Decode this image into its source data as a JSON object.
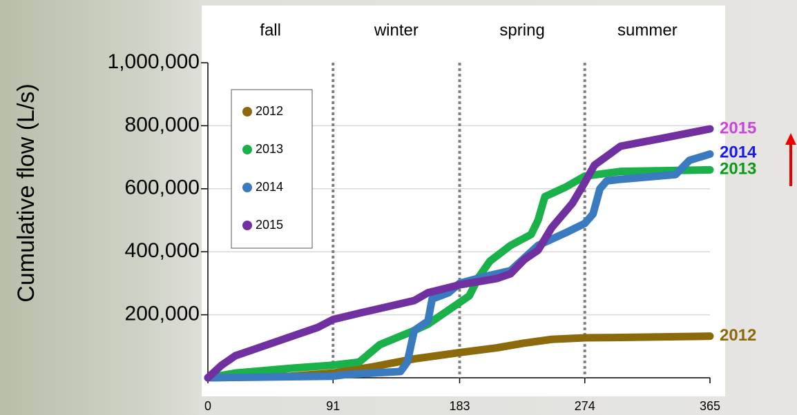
{
  "chart_data": {
    "type": "line",
    "y_label": "Cumulative flow (L/s)",
    "xlim": [
      0,
      365
    ],
    "xticks": [
      0,
      91,
      183,
      274,
      365
    ],
    "ylim": [
      0,
      1000000
    ],
    "yticks": [
      {
        "value": 200000,
        "label": "200,000"
      },
      {
        "value": 400000,
        "label": "400,000"
      },
      {
        "value": 600000,
        "label": "600,000"
      },
      {
        "value": 800000,
        "label": "800,000"
      },
      {
        "value": 1000000,
        "label": "1,000,000"
      }
    ],
    "grid": true,
    "seasons": [
      "fall",
      "winter",
      "spring",
      "summer"
    ],
    "season_dividers": [
      91,
      183,
      274
    ],
    "legend": "upper left",
    "series": [
      {
        "name": "2012",
        "color": "#8a6a0a",
        "x": [
          0,
          60,
          91,
          120,
          150,
          183,
          210,
          230,
          250,
          274,
          300,
          365
        ],
        "values": [
          0,
          5000,
          15000,
          35000,
          60000,
          80000,
          95000,
          110000,
          122000,
          127000,
          128000,
          132000
        ]
      },
      {
        "name": "2013",
        "color": "#1ab04a",
        "x": [
          0,
          20,
          60,
          91,
          110,
          125,
          150,
          160,
          175,
          190,
          197,
          205,
          220,
          235,
          240,
          245,
          260,
          274,
          300,
          365
        ],
        "values": [
          0,
          15000,
          30000,
          40000,
          50000,
          105000,
          150000,
          170000,
          215000,
          260000,
          320000,
          370000,
          420000,
          455000,
          500000,
          575000,
          605000,
          640000,
          655000,
          660000
        ]
      },
      {
        "name": "2014",
        "color": "#3a7bc0",
        "x": [
          0,
          91,
          100,
          140,
          145,
          150,
          160,
          163,
          175,
          183,
          200,
          220,
          240,
          260,
          274,
          280,
          285,
          290,
          300,
          340,
          350,
          365
        ],
        "values": [
          0,
          5000,
          10000,
          20000,
          50000,
          150000,
          180000,
          250000,
          270000,
          300000,
          320000,
          340000,
          420000,
          460000,
          490000,
          520000,
          600000,
          625000,
          630000,
          645000,
          690000,
          710000
        ]
      },
      {
        "name": "2015",
        "color": "#7030a0",
        "x": [
          0,
          10,
          20,
          40,
          60,
          80,
          91,
          110,
          130,
          150,
          160,
          183,
          210,
          220,
          230,
          240,
          250,
          265,
          274,
          281,
          300,
          330,
          365
        ],
        "values": [
          0,
          40000,
          70000,
          100000,
          130000,
          160000,
          185000,
          205000,
          225000,
          245000,
          270000,
          295000,
          315000,
          330000,
          375000,
          405000,
          477000,
          554000,
          620000,
          675000,
          735000,
          760000,
          790000
        ]
      }
    ]
  }
}
